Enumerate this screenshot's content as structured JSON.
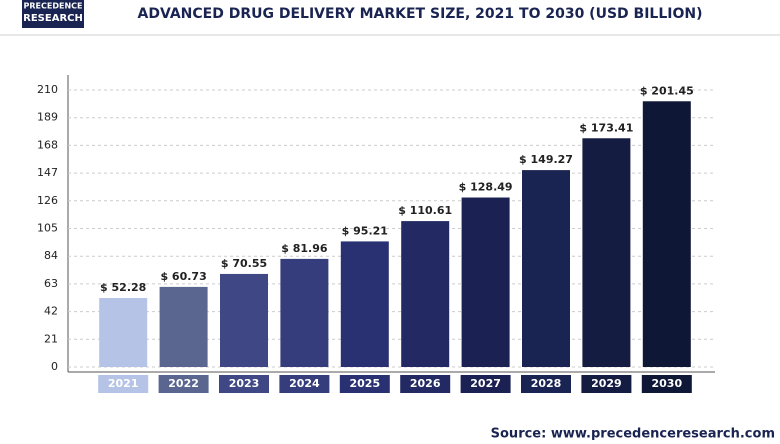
{
  "logo": {
    "line1": "PRECEDENCE",
    "line2": "RESEARCH"
  },
  "chart_data": {
    "type": "bar",
    "title": "ADVANCED DRUG DELIVERY MARKET SIZE, 2021 TO 2030 (USD BILLION)",
    "categories": [
      "2021",
      "2022",
      "2023",
      "2024",
      "2025",
      "2026",
      "2027",
      "2028",
      "2029",
      "2030"
    ],
    "values": [
      52.28,
      60.73,
      70.55,
      81.96,
      95.21,
      110.61,
      128.49,
      149.27,
      173.41,
      201.45
    ],
    "value_labels": [
      "$ 52.28",
      "$ 60.73",
      "$ 70.55",
      "$ 81.96",
      "$ 95.21",
      "$ 110.61",
      "$ 128.49",
      "$ 149.27",
      "$ 173.41",
      "$ 201.45"
    ],
    "colors": [
      "#b4c3e6",
      "#5a6690",
      "#3f4785",
      "#363d7c",
      "#2a3173",
      "#232a63",
      "#1b2152",
      "#1a2452",
      "#141c42",
      "#0f1736"
    ],
    "ylim": [
      0,
      210
    ],
    "yticks": [
      0,
      21,
      42,
      63,
      84,
      105,
      126,
      147,
      168,
      189,
      210
    ],
    "grid": true,
    "source": "Source: www.precedenceresearch.com"
  }
}
